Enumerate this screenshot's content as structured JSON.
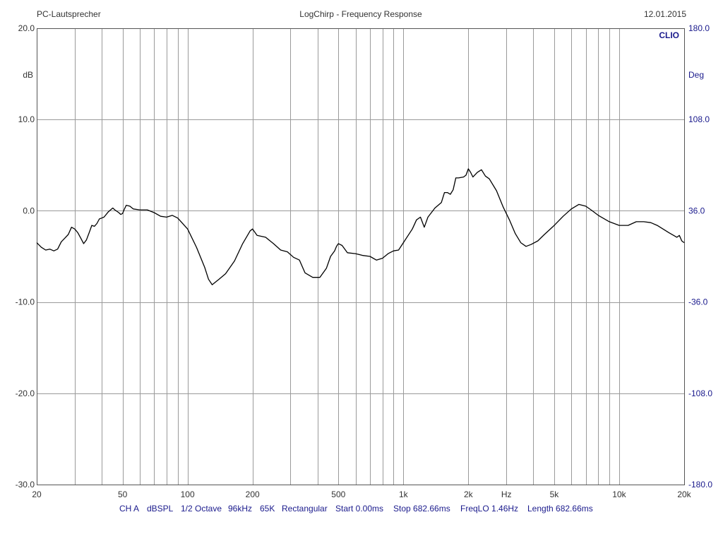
{
  "header": {
    "left": "PC-Lautsprecher",
    "center": "LogChirp - Frequency Response",
    "right": "12.01.2015"
  },
  "brand": "CLIO",
  "left_axis": {
    "unit": "dB",
    "ticks": [
      "20.0",
      "10.0",
      "0.0",
      "-10.0",
      "-20.0",
      "-30.0"
    ]
  },
  "right_axis": {
    "unit": "Deg",
    "ticks": [
      "180.0",
      "108.0",
      "36.0",
      "-36.0",
      "-108.0",
      "-180.0"
    ]
  },
  "x_axis": {
    "ticks": [
      "20",
      "50",
      "100",
      "200",
      "500",
      "1k",
      "2k",
      "Hz",
      "5k",
      "10k",
      "20k"
    ]
  },
  "footer": {
    "items": [
      "CH A",
      "dBSPL",
      "1/2 Octave",
      "96kHz",
      "65K",
      "Rectangular",
      "Start 0.00ms",
      "Stop 682.66ms",
      "FreqLO 1.46Hz",
      "Length 682.66ms"
    ]
  },
  "colors": {
    "grid": "#9a9a9a",
    "curve": "#000000",
    "right_axis_text": "#1a1a8c",
    "text": "#333333"
  },
  "chart_data": {
    "type": "line",
    "title": "LogChirp - Frequency Response",
    "xlabel": "Hz",
    "ylabel": "dB",
    "x_scale": "log",
    "xlim": [
      20,
      20000
    ],
    "ylim": [
      -30,
      20
    ],
    "y2label": "Deg",
    "y2lim": [
      -180,
      180
    ],
    "grid": true,
    "series": [
      {
        "points": [
          [
            20,
            -3.5
          ],
          [
            21,
            -4.0
          ],
          [
            22,
            -4.3
          ],
          [
            23,
            -4.2
          ],
          [
            24,
            -4.4
          ],
          [
            25,
            -4.2
          ],
          [
            26,
            -3.4
          ],
          [
            27,
            -3.0
          ],
          [
            28,
            -2.6
          ],
          [
            29,
            -1.8
          ],
          [
            30,
            -2.0
          ],
          [
            31,
            -2.4
          ],
          [
            32,
            -3.0
          ],
          [
            33,
            -3.6
          ],
          [
            34,
            -3.2
          ],
          [
            35,
            -2.4
          ],
          [
            36,
            -1.6
          ],
          [
            37,
            -1.7
          ],
          [
            38,
            -1.4
          ],
          [
            39,
            -0.9
          ],
          [
            40,
            -0.8
          ],
          [
            41,
            -0.7
          ],
          [
            43,
            -0.1
          ],
          [
            45,
            0.3
          ],
          [
            46,
            0.1
          ],
          [
            48,
            -0.2
          ],
          [
            49,
            -0.4
          ],
          [
            50,
            -0.3
          ],
          [
            51,
            0.2
          ],
          [
            52,
            0.6
          ],
          [
            54,
            0.5
          ],
          [
            56,
            0.2
          ],
          [
            60,
            0.1
          ],
          [
            65,
            0.1
          ],
          [
            70,
            -0.2
          ],
          [
            75,
            -0.6
          ],
          [
            80,
            -0.7
          ],
          [
            85,
            -0.5
          ],
          [
            90,
            -0.8
          ],
          [
            100,
            -2.0
          ],
          [
            110,
            -4.0
          ],
          [
            120,
            -6.2
          ],
          [
            125,
            -7.5
          ],
          [
            130,
            -8.1
          ],
          [
            140,
            -7.5
          ],
          [
            150,
            -6.9
          ],
          [
            165,
            -5.5
          ],
          [
            180,
            -3.6
          ],
          [
            195,
            -2.2
          ],
          [
            200,
            -2.0
          ],
          [
            210,
            -2.7
          ],
          [
            230,
            -2.9
          ],
          [
            250,
            -3.6
          ],
          [
            270,
            -4.3
          ],
          [
            290,
            -4.5
          ],
          [
            310,
            -5.1
          ],
          [
            330,
            -5.4
          ],
          [
            350,
            -6.8
          ],
          [
            380,
            -7.3
          ],
          [
            410,
            -7.3
          ],
          [
            440,
            -6.3
          ],
          [
            460,
            -5.0
          ],
          [
            480,
            -4.4
          ],
          [
            490,
            -3.9
          ],
          [
            500,
            -3.6
          ],
          [
            520,
            -3.8
          ],
          [
            550,
            -4.6
          ],
          [
            600,
            -4.7
          ],
          [
            650,
            -4.9
          ],
          [
            700,
            -5.0
          ],
          [
            750,
            -5.4
          ],
          [
            800,
            -5.2
          ],
          [
            850,
            -4.7
          ],
          [
            900,
            -4.4
          ],
          [
            950,
            -4.3
          ],
          [
            1000,
            -3.5
          ],
          [
            1100,
            -2.0
          ],
          [
            1150,
            -1.0
          ],
          [
            1200,
            -0.7
          ],
          [
            1250,
            -1.8
          ],
          [
            1300,
            -0.7
          ],
          [
            1400,
            0.3
          ],
          [
            1500,
            0.9
          ],
          [
            1550,
            2.0
          ],
          [
            1600,
            2.0
          ],
          [
            1650,
            1.8
          ],
          [
            1700,
            2.3
          ],
          [
            1750,
            3.6
          ],
          [
            1800,
            3.6
          ],
          [
            1900,
            3.7
          ],
          [
            1950,
            3.9
          ],
          [
            2000,
            4.6
          ],
          [
            2050,
            4.2
          ],
          [
            2100,
            3.7
          ],
          [
            2200,
            4.2
          ],
          [
            2300,
            4.5
          ],
          [
            2400,
            3.8
          ],
          [
            2500,
            3.5
          ],
          [
            2700,
            2.2
          ],
          [
            2900,
            0.4
          ],
          [
            3100,
            -1.0
          ],
          [
            3300,
            -2.5
          ],
          [
            3500,
            -3.5
          ],
          [
            3700,
            -3.9
          ],
          [
            3900,
            -3.7
          ],
          [
            4200,
            -3.3
          ],
          [
            4500,
            -2.6
          ],
          [
            5000,
            -1.6
          ],
          [
            5500,
            -0.6
          ],
          [
            6000,
            0.2
          ],
          [
            6500,
            0.7
          ],
          [
            7000,
            0.5
          ],
          [
            7500,
            0.0
          ],
          [
            8000,
            -0.5
          ],
          [
            9000,
            -1.2
          ],
          [
            10000,
            -1.6
          ],
          [
            11000,
            -1.6
          ],
          [
            12000,
            -1.2
          ],
          [
            13000,
            -1.2
          ],
          [
            14000,
            -1.3
          ],
          [
            15000,
            -1.6
          ],
          [
            17000,
            -2.4
          ],
          [
            18500,
            -2.9
          ],
          [
            19000,
            -2.7
          ],
          [
            19500,
            -3.3
          ],
          [
            20000,
            -3.5
          ]
        ]
      }
    ]
  }
}
